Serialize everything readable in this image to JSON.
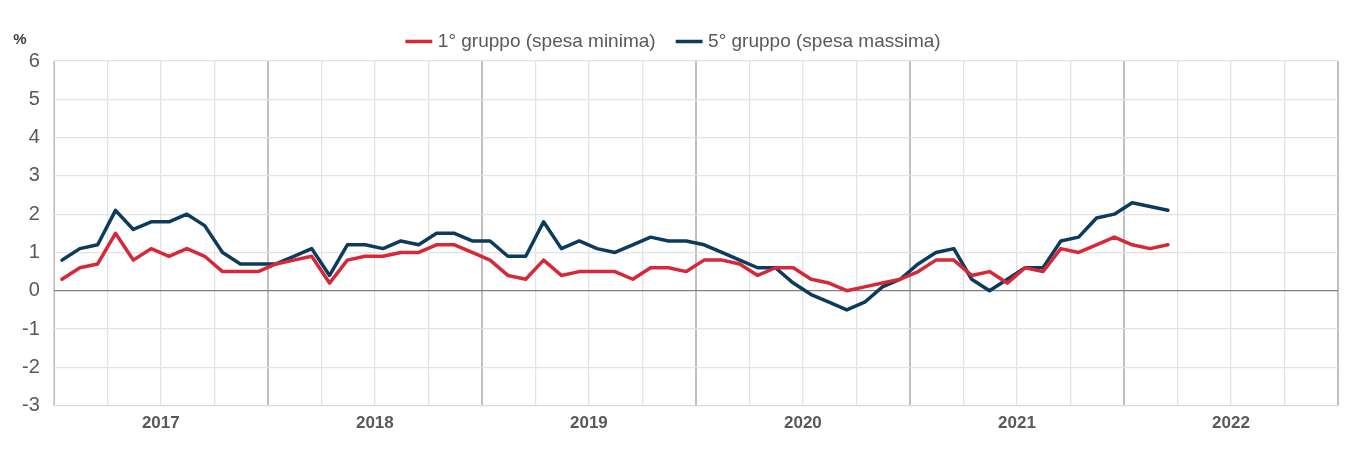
{
  "chart_data": {
    "type": "line",
    "ylabel": "%",
    "legend": "top",
    "grid": true,
    "line_style": "solid",
    "marker": "none",
    "x": [
      "2017-01-15",
      "2017-02-15",
      "2017-03-15",
      "2017-04-15",
      "2017-05-15",
      "2017-06-15",
      "2017-07-15",
      "2017-08-15",
      "2017-09-15",
      "2017-10-15",
      "2017-11-15",
      "2017-12-15",
      "2018-01-15",
      "2018-02-15",
      "2018-03-15",
      "2018-04-15",
      "2018-05-15",
      "2018-06-15",
      "2018-07-15",
      "2018-08-15",
      "2018-09-15",
      "2018-10-15",
      "2018-11-15",
      "2018-12-15",
      "2019-01-15",
      "2019-02-15",
      "2019-03-15",
      "2019-04-15",
      "2019-05-15",
      "2019-06-15",
      "2019-07-15",
      "2019-08-15",
      "2019-09-15",
      "2019-10-15",
      "2019-11-15",
      "2019-12-15",
      "2020-01-15",
      "2020-02-15",
      "2020-03-15",
      "2020-04-15",
      "2020-05-15",
      "2020-06-15",
      "2020-07-15",
      "2020-08-15",
      "2020-09-15",
      "2020-10-15",
      "2020-11-15",
      "2020-12-15",
      "2021-01-15",
      "2021-02-15",
      "2021-03-15",
      "2021-04-15",
      "2021-05-15",
      "2021-06-15",
      "2021-07-15",
      "2021-08-15",
      "2021-09-15",
      "2021-10-15",
      "2021-11-15",
      "2021-12-15",
      "2022-01-15",
      "2022-02-15",
      "2022-03-15"
    ],
    "series": [
      {
        "name": "1° gruppo (spesa minima)",
        "color": "#d62839",
        "values": [
          0.3,
          0.6,
          0.7,
          1.5,
          0.8,
          1.1,
          0.9,
          1.1,
          0.9,
          0.5,
          0.5,
          0.5,
          0.7,
          0.8,
          0.9,
          0.2,
          0.8,
          0.9,
          0.9,
          1.0,
          1.0,
          1.2,
          1.2,
          1.0,
          0.8,
          0.4,
          0.3,
          0.8,
          0.4,
          0.5,
          0.5,
          0.5,
          0.3,
          0.6,
          0.6,
          0.5,
          0.8,
          0.8,
          0.7,
          0.4,
          0.6,
          0.6,
          0.3,
          0.2,
          0.0,
          0.1,
          0.2,
          0.3,
          0.5,
          0.8,
          0.8,
          0.4,
          0.5,
          0.2,
          0.6,
          0.5,
          1.1,
          1.0,
          1.2,
          1.4,
          1.2,
          1.1,
          1.2
        ]
      },
      {
        "name": "5° gruppo (spesa massima)",
        "color": "#0d3b5e",
        "values": [
          0.8,
          1.1,
          1.2,
          2.1,
          1.6,
          1.8,
          1.8,
          2.0,
          1.7,
          1.0,
          0.7,
          0.7,
          0.7,
          0.9,
          1.1,
          0.4,
          1.2,
          1.2,
          1.1,
          1.3,
          1.2,
          1.5,
          1.5,
          1.3,
          1.3,
          0.9,
          0.9,
          1.8,
          1.1,
          1.3,
          1.1,
          1.0,
          1.2,
          1.4,
          1.3,
          1.3,
          1.2,
          1.0,
          0.8,
          0.6,
          0.6,
          0.2,
          -0.1,
          -0.3,
          -0.5,
          -0.3,
          0.1,
          0.3,
          0.7,
          1.0,
          1.1,
          0.3,
          0.0,
          0.3,
          0.6,
          0.6,
          1.3,
          1.4,
          1.9,
          2.0,
          2.3,
          2.2,
          2.1
        ]
      }
    ],
    "xlim": [
      "2017-01-01",
      "2023-01-01"
    ],
    "xticks": [
      {
        "value": "2017-01-01",
        "label": null
      },
      {
        "value": "2017-04-01",
        "label": null
      },
      {
        "value": "2017-07-01",
        "label": "2017"
      },
      {
        "value": "2017-10-01",
        "label": null
      },
      {
        "value": "2018-01-01",
        "label": null
      },
      {
        "value": "2018-04-01",
        "label": null
      },
      {
        "value": "2018-07-01",
        "label": "2018"
      },
      {
        "value": "2018-10-01",
        "label": null
      },
      {
        "value": "2019-01-01",
        "label": null
      },
      {
        "value": "2019-04-01",
        "label": null
      },
      {
        "value": "2019-07-01",
        "label": "2019"
      },
      {
        "value": "2019-10-01",
        "label": null
      },
      {
        "value": "2020-01-01",
        "label": null
      },
      {
        "value": "2020-04-01",
        "label": null
      },
      {
        "value": "2020-07-01",
        "label": "2020"
      },
      {
        "value": "2020-10-01",
        "label": null
      },
      {
        "value": "2021-01-01",
        "label": null
      },
      {
        "value": "2021-04-01",
        "label": null
      },
      {
        "value": "2021-07-01",
        "label": "2021"
      },
      {
        "value": "2021-10-01",
        "label": null
      },
      {
        "value": "2022-01-01",
        "label": null
      },
      {
        "value": "2022-04-01",
        "label": null
      },
      {
        "value": "2022-07-01",
        "label": "2022"
      },
      {
        "value": "2022-10-01",
        "label": null
      },
      {
        "value": "2023-01-01",
        "label": null
      }
    ],
    "ylim": [
      -3,
      6
    ],
    "yticks": [
      -3,
      -2,
      -1,
      0,
      1,
      2,
      3,
      4,
      5,
      6
    ]
  }
}
